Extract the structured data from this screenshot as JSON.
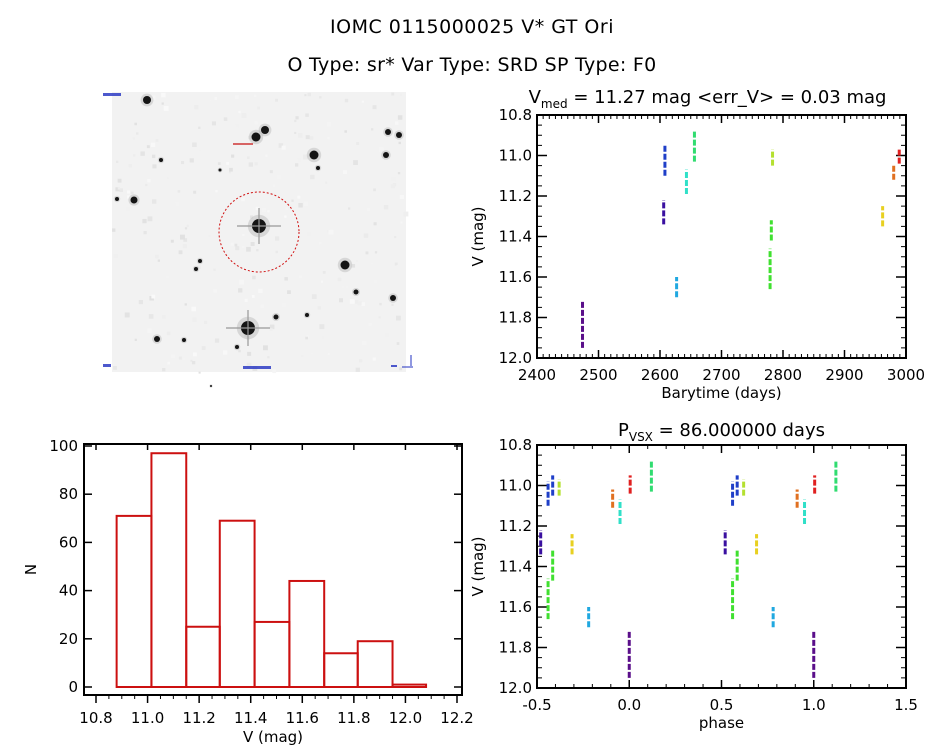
{
  "header": {
    "title": "IOMC 0115000025    V* GT Ori",
    "subtitle": "O Type: sr*  Var Type: SRD  SP Type: F0"
  },
  "star_image": {
    "description": "Finding chart, inverted grayscale star field",
    "target_circle_color": "#d01010",
    "label_color": "#2030c0"
  },
  "chart_data": [
    {
      "id": "light-curve",
      "type": "scatter",
      "title": "V_med = 11.27 mag <err_V> = 0.03 mag",
      "title_main": "V",
      "title_sub": "med",
      "title_rest": " = 11.27 mag <err_V> = 0.03 mag",
      "xlabel": "Barytime (days)",
      "ylabel": "V (mag)",
      "xlim": [
        2400,
        3000
      ],
      "ylim": [
        12.0,
        10.8
      ],
      "y_inverted": true,
      "xticks": [
        2400,
        2500,
        2600,
        2700,
        2800,
        2900,
        3000
      ],
      "xtick_labels": [
        "2400",
        "2500",
        "2600",
        "2700",
        "2800",
        "2900",
        "3000"
      ],
      "yticks": [
        10.8,
        11.0,
        11.2,
        11.4,
        11.6,
        11.8,
        12.0
      ],
      "ytick_labels": [
        "10.8",
        "11.0",
        "11.2",
        "11.4",
        "11.6",
        "11.8",
        "12.0"
      ],
      "series": [
        {
          "name": "s1",
          "color": "#5a0f8a",
          "x": 2474,
          "ymin": 11.72,
          "ymax": 11.95
        },
        {
          "name": "s2",
          "color": "#3a10a0",
          "x": 2606,
          "ymin": 11.22,
          "ymax": 11.34
        },
        {
          "name": "s3",
          "color": "#1f3fc8",
          "x": 2608,
          "ymin": 10.95,
          "ymax": 11.1
        },
        {
          "name": "s4",
          "color": "#20a8e0",
          "x": 2627,
          "ymin": 11.6,
          "ymax": 11.7
        },
        {
          "name": "s5",
          "color": "#30e0c8",
          "x": 2643,
          "ymin": 11.07,
          "ymax": 11.19
        },
        {
          "name": "s6",
          "color": "#30dc70",
          "x": 2656,
          "ymin": 10.88,
          "ymax": 11.03
        },
        {
          "name": "s7",
          "color": "#40e030",
          "x": 2779,
          "ymin": 11.46,
          "ymax": 11.66
        },
        {
          "name": "s8",
          "color": "#40e030",
          "x": 2781,
          "ymin": 11.32,
          "ymax": 11.42
        },
        {
          "name": "s9",
          "color": "#b4e030",
          "x": 2783,
          "ymin": 10.97,
          "ymax": 11.05
        },
        {
          "name": "s10",
          "color": "#e8d020",
          "x": 2962,
          "ymin": 11.25,
          "ymax": 11.35
        },
        {
          "name": "s11",
          "color": "#e07020",
          "x": 2980,
          "ymin": 11.05,
          "ymax": 11.12
        },
        {
          "name": "s12",
          "color": "#e02020",
          "x": 2989,
          "ymin": 10.97,
          "ymax": 11.04
        }
      ]
    },
    {
      "id": "histogram",
      "type": "bar",
      "title": "",
      "xlabel": "V (mag)",
      "ylabel": "N",
      "xlim": [
        10.8,
        12.2
      ],
      "ylim": [
        0,
        100
      ],
      "bar_color": "#cc1010",
      "bin_edges": [
        10.88,
        11.015,
        11.15,
        11.28,
        11.415,
        11.55,
        11.685,
        11.815,
        11.95,
        12.08
      ],
      "values": [
        71,
        97,
        25,
        69,
        27,
        44,
        14,
        19,
        1
      ],
      "xticks": [
        10.8,
        11.0,
        11.2,
        11.4,
        11.6,
        11.8,
        12.0,
        12.2
      ],
      "xtick_labels": [
        "10.8",
        "11.0",
        "11.2",
        "11.4",
        "11.6",
        "11.8",
        "12.0",
        "12.2"
      ],
      "yticks": [
        0,
        20,
        40,
        60,
        80,
        100
      ],
      "ytick_labels": [
        "0",
        "20",
        "40",
        "60",
        "80",
        "100"
      ]
    },
    {
      "id": "phase-plot",
      "type": "scatter",
      "title": "P_vsx = 86.000000 days",
      "title_main": "P",
      "title_sub": "VSX",
      "title_rest": " = 86.000000 days",
      "xlabel": "phase",
      "ylabel": "V (mag)",
      "xlim": [
        -0.5,
        1.5
      ],
      "ylim": [
        12.0,
        10.8
      ],
      "y_inverted": true,
      "period_days": 86.0,
      "xticks": [
        -0.5,
        0.0,
        0.5,
        1.0,
        1.5
      ],
      "xtick_labels": [
        "-0.5",
        "0.0",
        "0.5",
        "1.0",
        "1.5"
      ],
      "yticks": [
        10.8,
        11.0,
        11.2,
        11.4,
        11.6,
        11.8,
        12.0
      ],
      "ytick_labels": [
        "10.8",
        "11.0",
        "11.2",
        "11.4",
        "11.6",
        "11.8",
        "12.0"
      ],
      "series": [
        {
          "name": "s1",
          "color": "#5a0f8a",
          "phase": 0.0,
          "ymin": 11.72,
          "ymax": 11.95
        },
        {
          "name": "s2",
          "color": "#3a10a0",
          "phase": -0.48,
          "ymin": 11.22,
          "ymax": 11.34
        },
        {
          "name": "s3",
          "color": "#1f3fc8",
          "phase": -0.44,
          "ymin": 10.98,
          "ymax": 11.1
        },
        {
          "name": "s3b",
          "color": "#1f3fc8",
          "phase": -0.415,
          "ymin": 10.95,
          "ymax": 11.05
        },
        {
          "name": "s4",
          "color": "#20a8e0",
          "phase": -0.22,
          "ymin": 11.6,
          "ymax": 11.7
        },
        {
          "name": "s5",
          "color": "#30e0c8",
          "phase": -0.05,
          "ymin": 11.07,
          "ymax": 11.19
        },
        {
          "name": "s6",
          "color": "#30dc70",
          "phase": 0.12,
          "ymin": 10.88,
          "ymax": 11.03
        },
        {
          "name": "s7",
          "color": "#40e030",
          "phase": -0.44,
          "ymin": 11.46,
          "ymax": 11.66
        },
        {
          "name": "s8",
          "color": "#40e030",
          "phase": -0.415,
          "ymin": 11.32,
          "ymax": 11.47
        },
        {
          "name": "s9",
          "color": "#b4e030",
          "phase": -0.38,
          "ymin": 10.97,
          "ymax": 11.05
        },
        {
          "name": "s10",
          "color": "#e8d020",
          "phase": -0.31,
          "ymin": 11.24,
          "ymax": 11.34
        },
        {
          "name": "s11",
          "color": "#e07020",
          "phase": -0.09,
          "ymin": 11.02,
          "ymax": 11.11
        },
        {
          "name": "s12",
          "color": "#e02020",
          "phase": 0.005,
          "ymin": 10.95,
          "ymax": 11.04
        }
      ]
    }
  ]
}
